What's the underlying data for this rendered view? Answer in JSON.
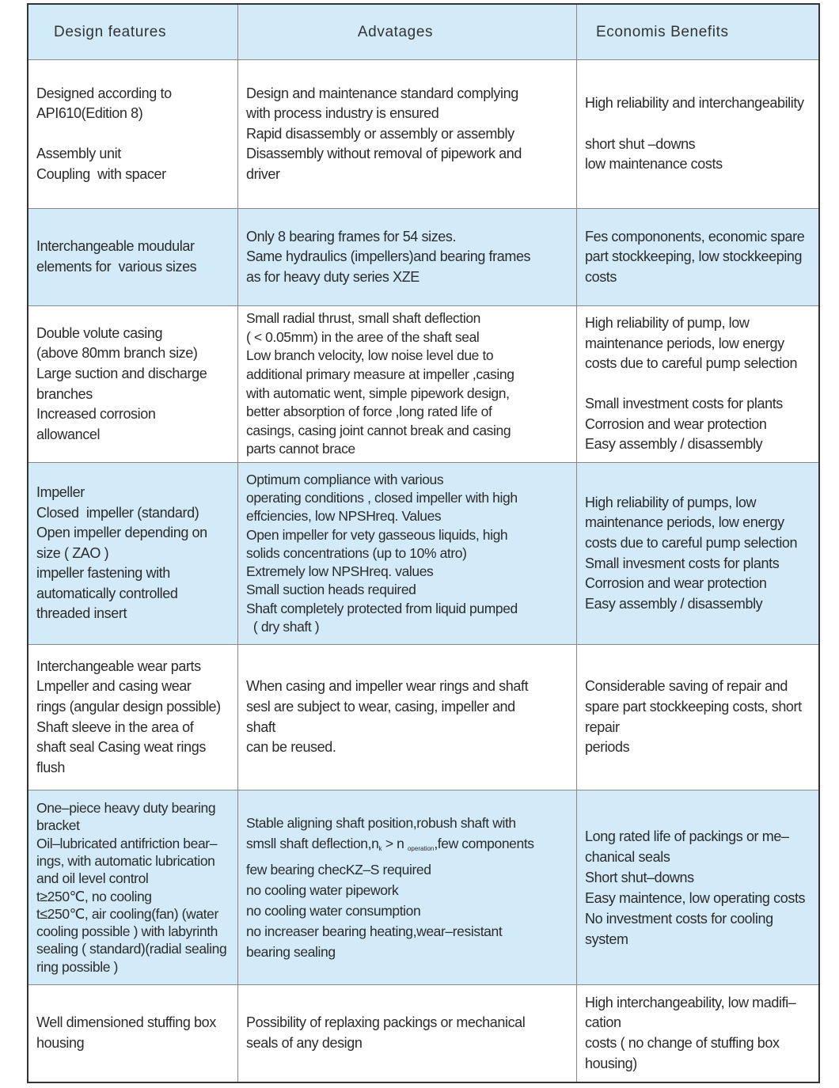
{
  "header": {
    "col1": "Design features",
    "col2": "Advatages",
    "col3": "Economis Benefits"
  },
  "rows": [
    {
      "features": "Designed according to\nAPI610(Edition 8)\n\nAssembly unit\nCoupling  with spacer",
      "advantages": "Design and maintenance standard complying\nwith process industry is ensured\nRapid disassembly or assembly or assembly\nDisassembly without removal of pipework and\ndriver",
      "benefits": "High reliability and interchangeability\n\nshort shut –downs\nlow maintenance costs"
    },
    {
      "features": "Interchangeable moudular\nelements for  various sizes",
      "advantages": "Only 8 bearing frames for 54 sizes.\nSame hydraulics (impellers)and bearing frames\nas for heavy duty series XZE",
      "benefits": "Fes compononents, economic spare\npart stockkeeping, low stockkeeping\ncosts"
    },
    {
      "features": "Double volute casing\n(above 80mm branch size)\nLarge suction and discharge\nbranches\nIncreased corrosion\nallowancel",
      "advantages": "Small radial thrust, small shaft deflection\n( < 0.05mm) in the aree of the shaft seal\nLow branch velocity, low noise level due to\nadditional primary measure at impeller ,casing\nwith automatic went, simple pipework design,\nbetter absorption of force ,long rated life of\ncasings, casing joint cannot break and casing\nparts cannot brace",
      "benefits": "High reliability of pump, low\nmaintenance periods, low energy\ncosts due to careful pump selection\n\nSmall investment costs for plants\nCorrosion and wear protection\nEasy assembly / disassembly"
    },
    {
      "features": "Impeller\nClosed  impeller (standard)\nOpen impeller depending on\nsize ( ZAO )\nimpeller fastening with\nautomatically controlled\nthreaded insert",
      "advantages": "Optimum compliance with various\noperating conditions , closed impeller with high\neffciencies, low NPSHreq. Values\nOpen impeller for vety gasseous liquids, high\nsolids concentrations (up to 10% atro)\nExtremely low NPSHreq. values\nSmall suction heads required\nShaft completely protected from liquid pumped\n  ( dry shaft )",
      "benefits": "High reliability of pumps, low\nmaintenance periods, low energy\ncosts due to careful pump selection\nSmall invesment costs for plants\nCorrosion and wear protection\nEasy assembly / disassembly"
    },
    {
      "features": "Interchangeable wear parts\nLmpeller and casing wear\nrings (angular design possible)\nShaft sleeve in the area of\nshaft seal Casing weat rings\nflush",
      "advantages": "When casing and impeller wear rings and shaft\nsesl are subject to wear, casing, impeller and\nshaft\ncan be reused.",
      "benefits": "Considerable saving of repair and\nspare part stockkeeping costs, short\nrepair\nperiods"
    },
    {
      "features": "One–piece heavy duty bearing\nbracket\nOil–lubricated antifriction bear–\nings, with automatic lubrication\nand oil level control\nt≥250℃, no cooling\nt≤250℃, air cooling(fan) (water\ncooling possible ) with labyrinth\nsealing ( standard)(radial sealing\nring possible )",
      "advantages_line1": "Stable aligning shaft position,robush shaft with",
      "advantages_line2_a": "smsll shaft deflection,n",
      "advantages_line2_sub1": "k",
      "advantages_line2_b": " > n ",
      "advantages_line2_sub2": "operation",
      "advantages_line2_c": ",few components",
      "advantages_rest": "few bearing checKZ–S required\nno cooling water pipework\nno cooling water consumption\nno increaser bearing heating,wear–resistant\nbearing sealing",
      "benefits": "Long rated life of packings or me–\nchanical seals\nShort shut–downs\nEasy maintence, low operating costs\nNo investment costs for cooling\nsystem"
    },
    {
      "features": "Well dimensioned stuffing box\nhousing",
      "advantages": "Possibility of replaxing packings or mechanical\nseals of any design",
      "benefits": "High interchangeability, low madifi–\ncation\ncosts ( no change of stuffing box\nhousing)"
    }
  ],
  "colors": {
    "header_bg": "#d3ebf8",
    "alt_row_bg": "#d3ebf8",
    "border": "#333333"
  }
}
